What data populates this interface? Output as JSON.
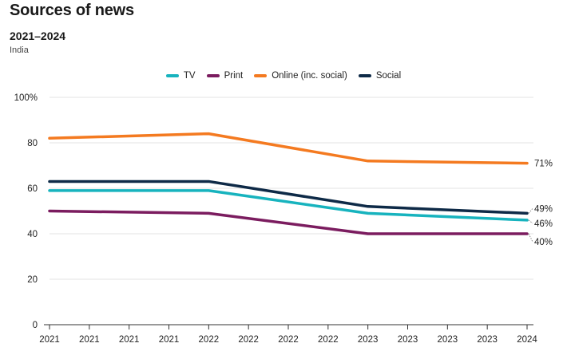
{
  "header": {
    "title": "Sources of news",
    "subtitle": "2021–2024",
    "region": "India"
  },
  "chart_data": {
    "type": "line",
    "title": "Sources of news",
    "subtitle": "2021–2024",
    "region": "India",
    "xlabel": "",
    "ylabel": "",
    "ylim": [
      0,
      100
    ],
    "y_ticks": [
      0,
      20,
      40,
      60,
      80,
      100
    ],
    "y_tick_labels": [
      "0",
      "20",
      "40",
      "60",
      "80",
      "100%"
    ],
    "x_tick_labels": [
      "2021",
      "2021",
      "2021",
      "2021",
      "2022",
      "2022",
      "2022",
      "2022",
      "2023",
      "2023",
      "2023",
      "2023",
      "2024"
    ],
    "x_points": [
      0,
      4,
      8,
      12
    ],
    "legend_position": "top-center",
    "series": [
      {
        "name": "TV",
        "color": "#17b3be",
        "values": [
          59,
          59,
          49,
          46
        ],
        "end_label": "46%"
      },
      {
        "name": "Print",
        "color": "#7b1c5f",
        "values": [
          50,
          49,
          40,
          40
        ],
        "end_label": "40%"
      },
      {
        "name": "Online (inc. social)",
        "color": "#f47a20",
        "values": [
          82,
          84,
          72,
          71
        ],
        "end_label": "71%"
      },
      {
        "name": "Social",
        "color": "#0e2a47",
        "values": [
          63,
          63,
          52,
          49
        ],
        "end_label": "49%"
      }
    ]
  }
}
